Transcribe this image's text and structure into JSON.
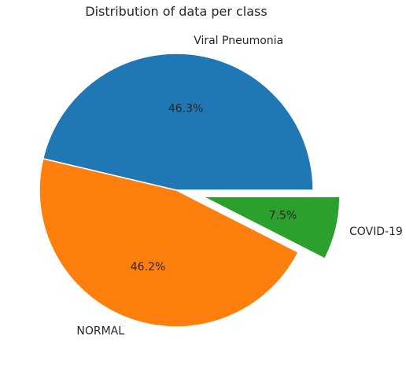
{
  "chart_data": {
    "type": "pie",
    "title": "Distribution of data per class",
    "slices": [
      {
        "label": "Viral Pneumonia",
        "value": 46.3,
        "pct_label": "46.3%",
        "color": "#1f77b4",
        "explode": 0
      },
      {
        "label": "NORMAL",
        "value": 46.2,
        "pct_label": "46.2%",
        "color": "#ff7f0e",
        "explode": 0
      },
      {
        "label": "COVID-19",
        "value": 7.5,
        "pct_label": "7.5%",
        "color": "#2ca02c",
        "explode": 0.2
      }
    ],
    "start_angle": 0,
    "direction": "counterclockwise"
  }
}
